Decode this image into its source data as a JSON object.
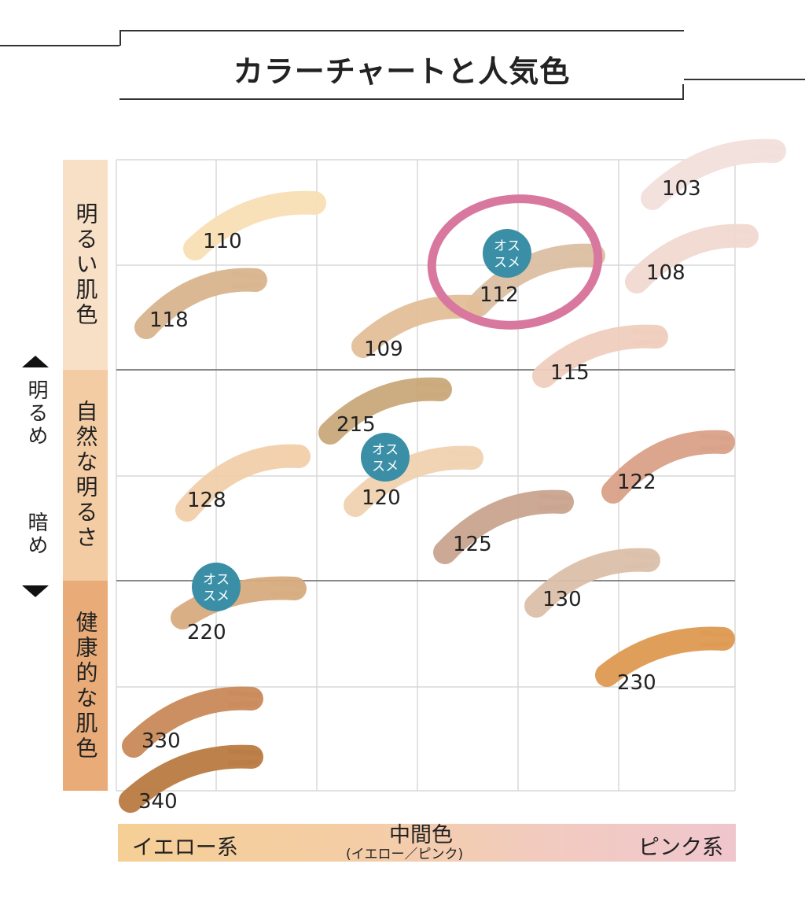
{
  "title": "カラーチャートと人気色",
  "y_axis": {
    "up_label": "明るめ",
    "down_label": "暗め",
    "bands": [
      {
        "label": "明るい肌色",
        "color": "#f8e0c6"
      },
      {
        "label": "自然な明るさ",
        "color": "#f4cca3"
      },
      {
        "label": "健康的な肌色",
        "color": "#e9ab78"
      }
    ]
  },
  "x_axis": {
    "left_label": "イエロー系",
    "middle_label": "中間色",
    "middle_sub": "(イエロー／ピンク)",
    "right_label": "ピンク系"
  },
  "badge": {
    "text_line1": "オス",
    "text_line2": "スメ",
    "color": "#3a8fa6"
  },
  "highlight_color": "#d9789f",
  "shades": [
    {
      "label": "103",
      "color": "#f2dfdc"
    },
    {
      "label": "108",
      "color": "#f0d9d0"
    },
    {
      "label": "110",
      "color": "#f8dfb5"
    },
    {
      "label": "112",
      "color": "#dcbfa2",
      "recommended": true,
      "highlighted": true
    },
    {
      "label": "118",
      "color": "#d9b48e"
    },
    {
      "label": "109",
      "color": "#e2bf98"
    },
    {
      "label": "115",
      "color": "#efcdbd"
    },
    {
      "label": "215",
      "color": "#c9a87a"
    },
    {
      "label": "120",
      "color": "#efd2b0",
      "recommended": true
    },
    {
      "label": "128",
      "color": "#f1d0aa"
    },
    {
      "label": "122",
      "color": "#d9a088"
    },
    {
      "label": "125",
      "color": "#c9a48e"
    },
    {
      "label": "130",
      "color": "#dbc0aa"
    },
    {
      "label": "220",
      "color": "#d7ab80",
      "recommended": true
    },
    {
      "label": "230",
      "color": "#dd9a52"
    },
    {
      "label": "330",
      "color": "#c9895a"
    },
    {
      "label": "340",
      "color": "#b97a42"
    }
  ]
}
